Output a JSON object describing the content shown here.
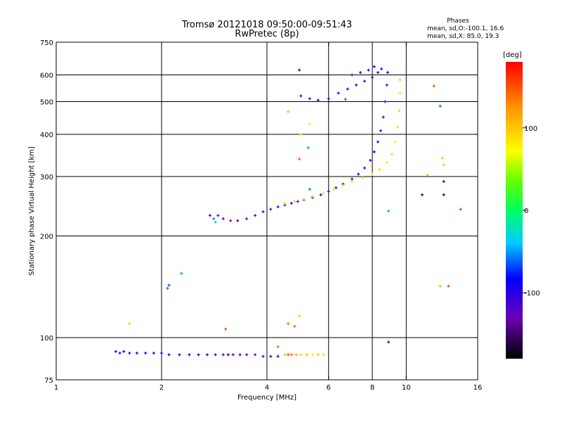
{
  "chart_data": {
    "type": "scatter",
    "title": "Tromsø 20121018 09:50:00-09:51:43",
    "subtitle": "RwPretec (8p)",
    "stats": {
      "heading": "Phases",
      "line1": "mean, sd,O:-100.1, 16.6",
      "line2": "mean, sd,X:  85.0, 19.3"
    },
    "xlabel": "Frequency [MHz]",
    "ylabel": "Stationary phase Virtual Height [km]",
    "x_scale": "log",
    "y_scale": "log",
    "xlim": [
      1,
      16
    ],
    "ylim": [
      75,
      750
    ],
    "x_ticks": [
      1,
      2,
      4,
      6,
      8,
      10,
      16
    ],
    "x_tick_labels": [
      "1",
      "2",
      "4",
      "6",
      "8",
      "10",
      "16"
    ],
    "y_ticks": [
      75,
      100,
      200,
      300,
      400,
      500,
      600,
      750
    ],
    "y_tick_labels": [
      "75",
      "100",
      "200",
      "300",
      "400",
      "500",
      "600",
      "750"
    ],
    "grid_x": [
      2,
      4,
      6,
      8,
      10
    ],
    "grid_y": [
      100,
      200,
      300,
      400,
      500,
      600
    ],
    "grid": true,
    "colorbar": {
      "label": "[deg]",
      "range": [
        -180,
        180
      ],
      "ticks": [
        100,
        0,
        -100
      ],
      "tick_labels": [
        "100",
        "0",
        "-100"
      ]
    },
    "series": [
      {
        "points": [
          {
            "x": 1.48,
            "y": 91,
            "c": -100
          },
          {
            "x": 1.52,
            "y": 90,
            "c": -100
          },
          {
            "x": 1.56,
            "y": 91,
            "c": -90
          },
          {
            "x": 1.62,
            "y": 90,
            "c": -95
          },
          {
            "x": 1.7,
            "y": 90,
            "c": -90
          },
          {
            "x": 1.8,
            "y": 90,
            "c": -95
          },
          {
            "x": 1.9,
            "y": 90,
            "c": -90
          },
          {
            "x": 2.0,
            "y": 90,
            "c": -80
          },
          {
            "x": 2.1,
            "y": 89,
            "c": -90
          },
          {
            "x": 2.25,
            "y": 89,
            "c": -100
          },
          {
            "x": 2.4,
            "y": 89,
            "c": -95
          },
          {
            "x": 2.55,
            "y": 89,
            "c": -100
          },
          {
            "x": 2.7,
            "y": 89,
            "c": -110
          },
          {
            "x": 2.85,
            "y": 89,
            "c": -120
          },
          {
            "x": 3.0,
            "y": 89,
            "c": -130
          },
          {
            "x": 3.1,
            "y": 89,
            "c": -150
          },
          {
            "x": 3.2,
            "y": 89,
            "c": -120
          },
          {
            "x": 3.35,
            "y": 89,
            "c": -140
          },
          {
            "x": 3.5,
            "y": 89,
            "c": -120
          },
          {
            "x": 3.7,
            "y": 89,
            "c": -130
          },
          {
            "x": 3.9,
            "y": 88,
            "c": -120
          },
          {
            "x": 4.1,
            "y": 88,
            "c": -100
          },
          {
            "x": 4.3,
            "y": 88,
            "c": -80
          },
          {
            "x": 4.5,
            "y": 89,
            "c": 100
          },
          {
            "x": 4.6,
            "y": 89,
            "c": 150
          },
          {
            "x": 4.7,
            "y": 89,
            "c": 140
          },
          {
            "x": 4.85,
            "y": 89,
            "c": 120
          },
          {
            "x": 5.0,
            "y": 89,
            "c": 90
          },
          {
            "x": 5.2,
            "y": 89,
            "c": 100
          },
          {
            "x": 5.4,
            "y": 89,
            "c": 80
          },
          {
            "x": 5.6,
            "y": 89,
            "c": 100
          },
          {
            "x": 5.8,
            "y": 89,
            "c": 90
          }
        ]
      },
      {
        "points": [
          {
            "x": 2.75,
            "y": 230,
            "c": -100
          },
          {
            "x": 2.82,
            "y": 225,
            "c": -60
          },
          {
            "x": 2.85,
            "y": 220,
            "c": -40
          },
          {
            "x": 2.9,
            "y": 230,
            "c": -110
          },
          {
            "x": 3.0,
            "y": 225,
            "c": -120
          },
          {
            "x": 3.15,
            "y": 222,
            "c": -130
          },
          {
            "x": 3.3,
            "y": 222,
            "c": -140
          },
          {
            "x": 3.5,
            "y": 225,
            "c": -130
          },
          {
            "x": 3.7,
            "y": 230,
            "c": -120
          },
          {
            "x": 3.9,
            "y": 236,
            "c": -110
          },
          {
            "x": 4.1,
            "y": 240,
            "c": -115
          },
          {
            "x": 4.3,
            "y": 244,
            "c": -110
          },
          {
            "x": 4.5,
            "y": 247,
            "c": -120
          },
          {
            "x": 4.7,
            "y": 250,
            "c": -100
          },
          {
            "x": 4.9,
            "y": 253,
            "c": -110
          },
          {
            "x": 5.1,
            "y": 256,
            "c": -100
          },
          {
            "x": 5.4,
            "y": 260,
            "c": -110
          },
          {
            "x": 5.7,
            "y": 265,
            "c": -100
          },
          {
            "x": 6.0,
            "y": 271,
            "c": -110
          },
          {
            "x": 6.3,
            "y": 278,
            "c": -100
          },
          {
            "x": 6.6,
            "y": 285,
            "c": -110
          },
          {
            "x": 7.0,
            "y": 295,
            "c": -100
          },
          {
            "x": 7.3,
            "y": 305,
            "c": -110
          },
          {
            "x": 7.6,
            "y": 318,
            "c": -100
          },
          {
            "x": 7.9,
            "y": 335,
            "c": -110
          },
          {
            "x": 8.1,
            "y": 355,
            "c": -100
          },
          {
            "x": 8.3,
            "y": 380,
            "c": -110
          },
          {
            "x": 8.45,
            "y": 410,
            "c": -100
          },
          {
            "x": 8.6,
            "y": 450,
            "c": -110
          },
          {
            "x": 8.7,
            "y": 500,
            "c": -100
          },
          {
            "x": 8.8,
            "y": 560,
            "c": -110
          },
          {
            "x": 8.85,
            "y": 610,
            "c": -100
          }
        ]
      },
      {
        "points": [
          {
            "x": 4.5,
            "y": 250,
            "c": 90
          },
          {
            "x": 4.8,
            "y": 253,
            "c": 95
          },
          {
            "x": 5.1,
            "y": 257,
            "c": 85
          },
          {
            "x": 5.4,
            "y": 262,
            "c": 90
          },
          {
            "x": 5.8,
            "y": 268,
            "c": 85
          },
          {
            "x": 6.2,
            "y": 275,
            "c": 90
          },
          {
            "x": 6.6,
            "y": 282,
            "c": 80
          },
          {
            "x": 7.0,
            "y": 290,
            "c": 90
          },
          {
            "x": 7.5,
            "y": 298,
            "c": 85
          },
          {
            "x": 8.0,
            "y": 305,
            "c": 80
          },
          {
            "x": 8.4,
            "y": 315,
            "c": 90
          },
          {
            "x": 8.8,
            "y": 330,
            "c": 85
          },
          {
            "x": 9.1,
            "y": 350,
            "c": 90
          },
          {
            "x": 9.3,
            "y": 380,
            "c": 80
          },
          {
            "x": 9.45,
            "y": 420,
            "c": 90
          },
          {
            "x": 9.55,
            "y": 470,
            "c": 95
          },
          {
            "x": 9.6,
            "y": 530,
            "c": 85
          },
          {
            "x": 9.6,
            "y": 580,
            "c": 100
          }
        ]
      },
      {
        "points": [
          {
            "x": 5.0,
            "y": 520,
            "c": -100
          },
          {
            "x": 5.3,
            "y": 510,
            "c": -110
          },
          {
            "x": 5.6,
            "y": 505,
            "c": -100
          },
          {
            "x": 6.0,
            "y": 510,
            "c": -110
          },
          {
            "x": 6.4,
            "y": 530,
            "c": -100
          },
          {
            "x": 6.8,
            "y": 545,
            "c": -110
          },
          {
            "x": 7.2,
            "y": 560,
            "c": -100
          },
          {
            "x": 7.6,
            "y": 575,
            "c": -110
          },
          {
            "x": 8.0,
            "y": 590,
            "c": -100
          },
          {
            "x": 8.3,
            "y": 610,
            "c": -110
          },
          {
            "x": 8.5,
            "y": 625,
            "c": -100
          },
          {
            "x": 7.0,
            "y": 600,
            "c": -110
          },
          {
            "x": 7.4,
            "y": 610,
            "c": -100
          },
          {
            "x": 7.8,
            "y": 620,
            "c": -110
          },
          {
            "x": 8.1,
            "y": 635,
            "c": -100
          }
        ]
      },
      {
        "points": [
          {
            "x": 1.62,
            "y": 110,
            "c": 95
          },
          {
            "x": 2.08,
            "y": 140,
            "c": -60
          },
          {
            "x": 2.1,
            "y": 143,
            "c": -70
          },
          {
            "x": 2.28,
            "y": 155,
            "c": -50
          },
          {
            "x": 3.05,
            "y": 106,
            "c": 150
          },
          {
            "x": 4.6,
            "y": 110,
            "c": 140
          },
          {
            "x": 4.95,
            "y": 116,
            "c": 100
          },
          {
            "x": 4.6,
            "y": 467,
            "c": 40
          },
          {
            "x": 4.95,
            "y": 620,
            "c": -110
          },
          {
            "x": 5.0,
            "y": 400,
            "c": 100
          },
          {
            "x": 4.95,
            "y": 338,
            "c": 150
          },
          {
            "x": 5.3,
            "y": 275,
            "c": -60
          },
          {
            "x": 5.3,
            "y": 430,
            "c": 80
          },
          {
            "x": 5.25,
            "y": 365,
            "c": -50
          },
          {
            "x": 8.9,
            "y": 237,
            "c": -50
          },
          {
            "x": 8.9,
            "y": 97,
            "c": -110
          },
          {
            "x": 11.1,
            "y": 265,
            "c": -160
          },
          {
            "x": 11.5,
            "y": 303,
            "c": 110
          },
          {
            "x": 12.0,
            "y": 556,
            "c": 150
          },
          {
            "x": 12.5,
            "y": 485,
            "c": -60
          },
          {
            "x": 12.7,
            "y": 340,
            "c": 100
          },
          {
            "x": 12.8,
            "y": 325,
            "c": 100
          },
          {
            "x": 12.8,
            "y": 290,
            "c": -150
          },
          {
            "x": 12.8,
            "y": 265,
            "c": -160
          },
          {
            "x": 12.5,
            "y": 142,
            "c": 110
          },
          {
            "x": 13.2,
            "y": 142,
            "c": 150
          },
          {
            "x": 14.3,
            "y": 240,
            "c": -60
          },
          {
            "x": 4.8,
            "y": 108,
            "c": 150
          },
          {
            "x": 4.3,
            "y": 94,
            "c": 140
          },
          {
            "x": 6.7,
            "y": 508,
            "c": -60
          }
        ]
      }
    ]
  }
}
